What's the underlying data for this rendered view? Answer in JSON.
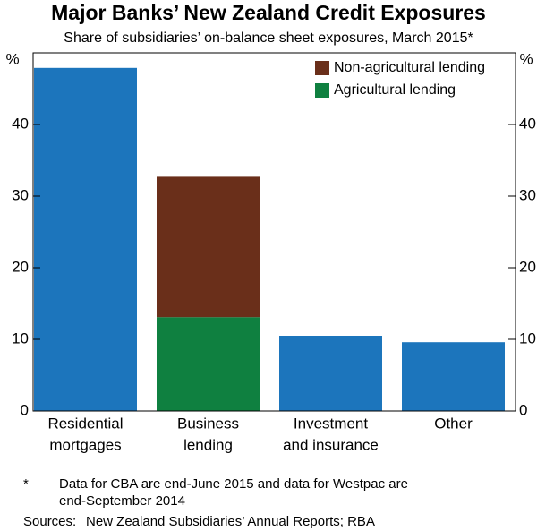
{
  "chart_data": {
    "type": "stacked_bar",
    "title": "Major Banks’ New Zealand Credit Exposures",
    "subtitle": "Share of subsidiaries’ on-balance sheet exposures, March 2015*",
    "categories": [
      [
        "Residential",
        "mortgages"
      ],
      [
        "Business",
        "lending"
      ],
      [
        "Investment",
        "and insurance"
      ],
      [
        "Other"
      ]
    ],
    "series": [
      {
        "color": "#1c75bc",
        "values": [
          47.9,
          null,
          10.5,
          9.6
        ]
      },
      {
        "name": "Agricultural lending",
        "color": "#0f8040",
        "values": [
          null,
          13.1,
          null,
          null
        ]
      },
      {
        "name": "Non-agricultural lending",
        "color": "#6a2f1a",
        "values": [
          null,
          19.6,
          null,
          null
        ]
      }
    ],
    "ylim": [
      0,
      50
    ],
    "yticks": [
      0,
      10,
      20,
      30,
      40
    ],
    "y_unit": "%",
    "y2lim": [
      0,
      50
    ],
    "y2ticks": [
      0,
      10,
      20,
      30,
      40
    ],
    "y2_unit": "%",
    "legend": "top-right",
    "footnote_marker": "*",
    "footnote": [
      "Data for CBA are end-June 2015 and data for Westpac are",
      "end-September 2014"
    ],
    "sources_label": "Sources:",
    "sources": "New Zealand Subsidiaries’ Annual Reports; RBA"
  }
}
